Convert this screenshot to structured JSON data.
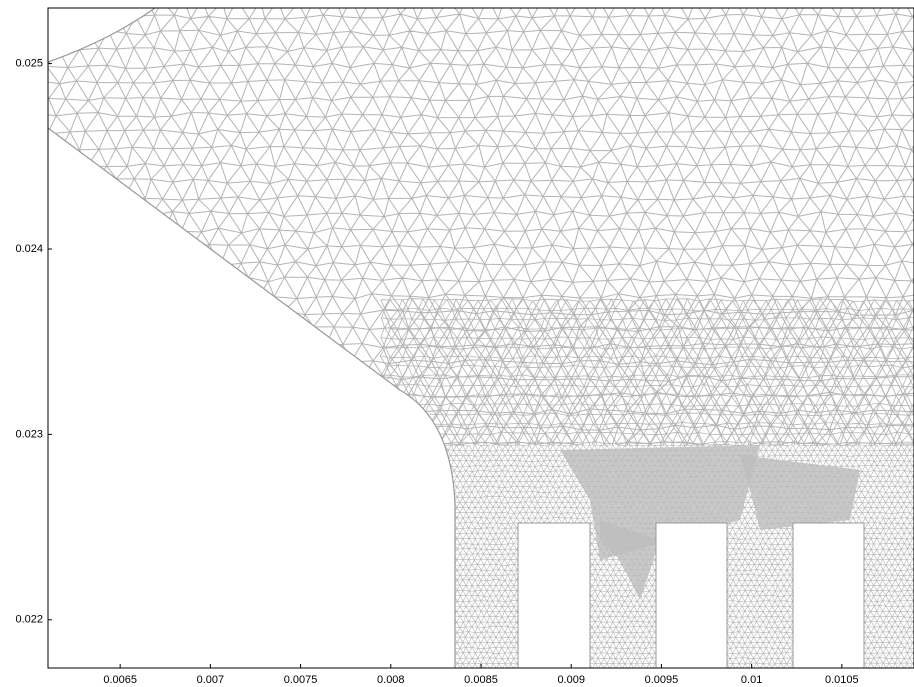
{
  "chart_data": {
    "type": "mesh",
    "xlim": [
      0.0061,
      0.0109
    ],
    "xticks": [
      0.0065,
      0.007,
      0.0075,
      0.008,
      0.0085,
      0.009,
      0.0095,
      0.01,
      0.0105
    ],
    "ylim": [
      0.02174,
      0.0253
    ],
    "yticks": [
      0.022,
      0.023,
      0.024,
      0.025
    ],
    "color": "#b4b4b4"
  }
}
